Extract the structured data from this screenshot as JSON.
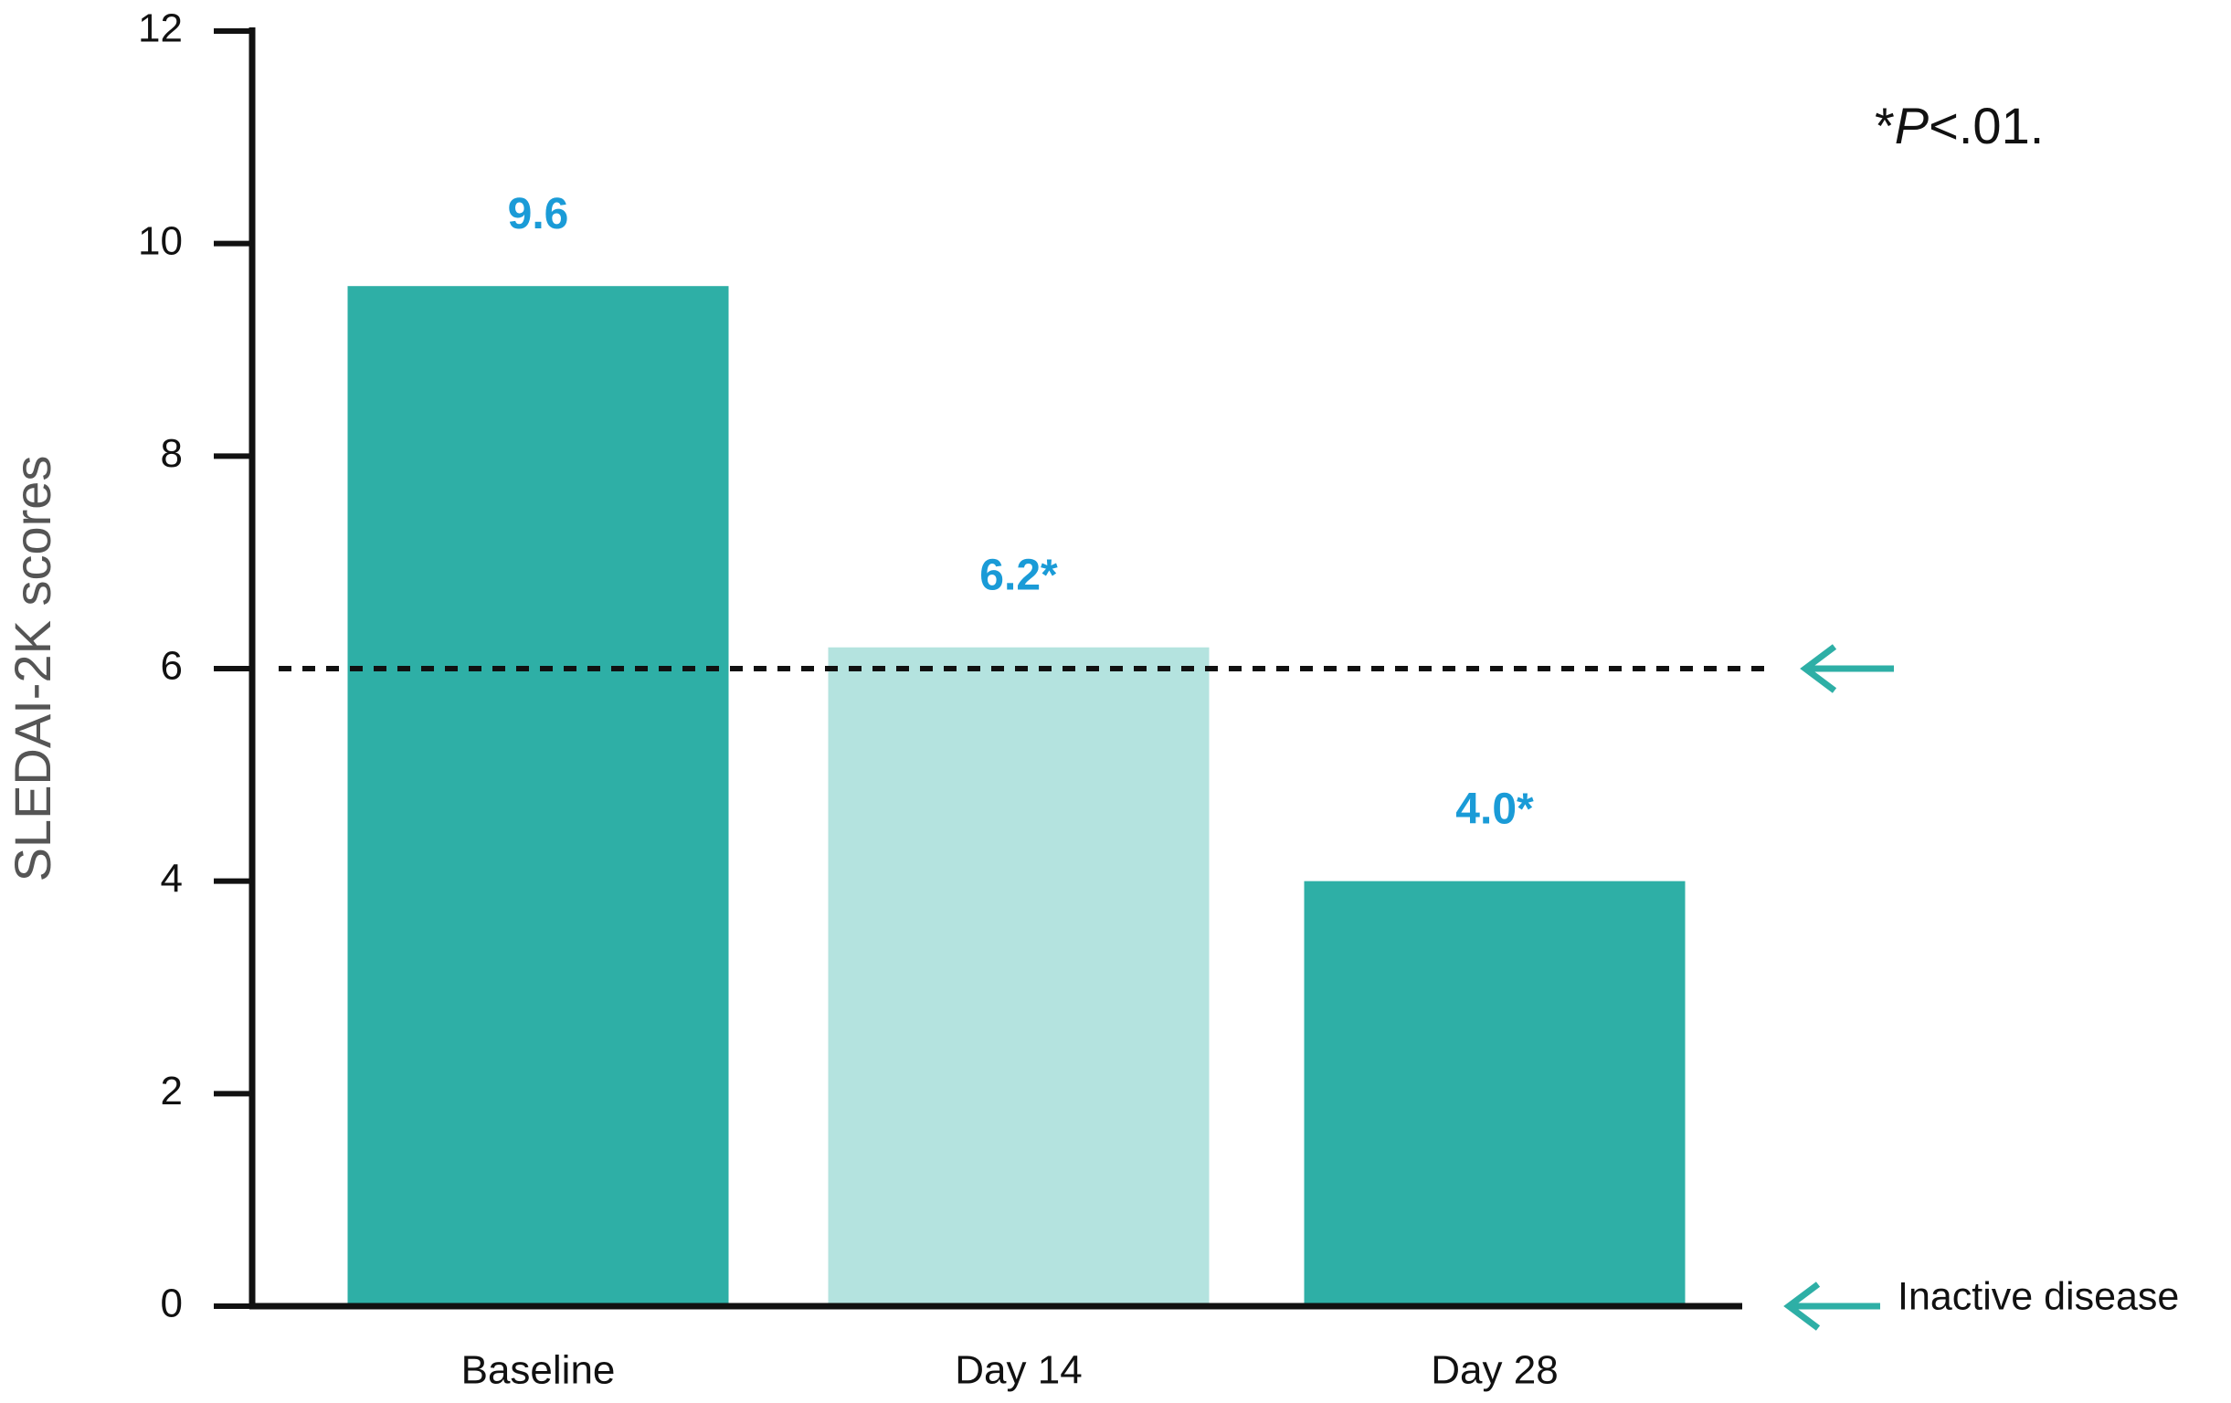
{
  "chart_data": {
    "type": "bar",
    "y_label": "SLEDAI-2K scores",
    "annotation": "*P<.01.",
    "categories": [
      "Baseline",
      "Day 14",
      "Day 28"
    ],
    "values": [
      9.6,
      6.2,
      4.0
    ],
    "value_labels": [
      "9.6",
      "6.2*",
      "4.0*"
    ],
    "colors": [
      "#2eafa6",
      "#b4e3df",
      "#2eafa6"
    ],
    "label_color": "#1a9bd7",
    "ylim": [
      0,
      12
    ],
    "yticks": [
      0,
      2,
      4,
      6,
      8,
      10,
      12
    ],
    "threshold": 6,
    "zero_note": "Inactive disease"
  }
}
